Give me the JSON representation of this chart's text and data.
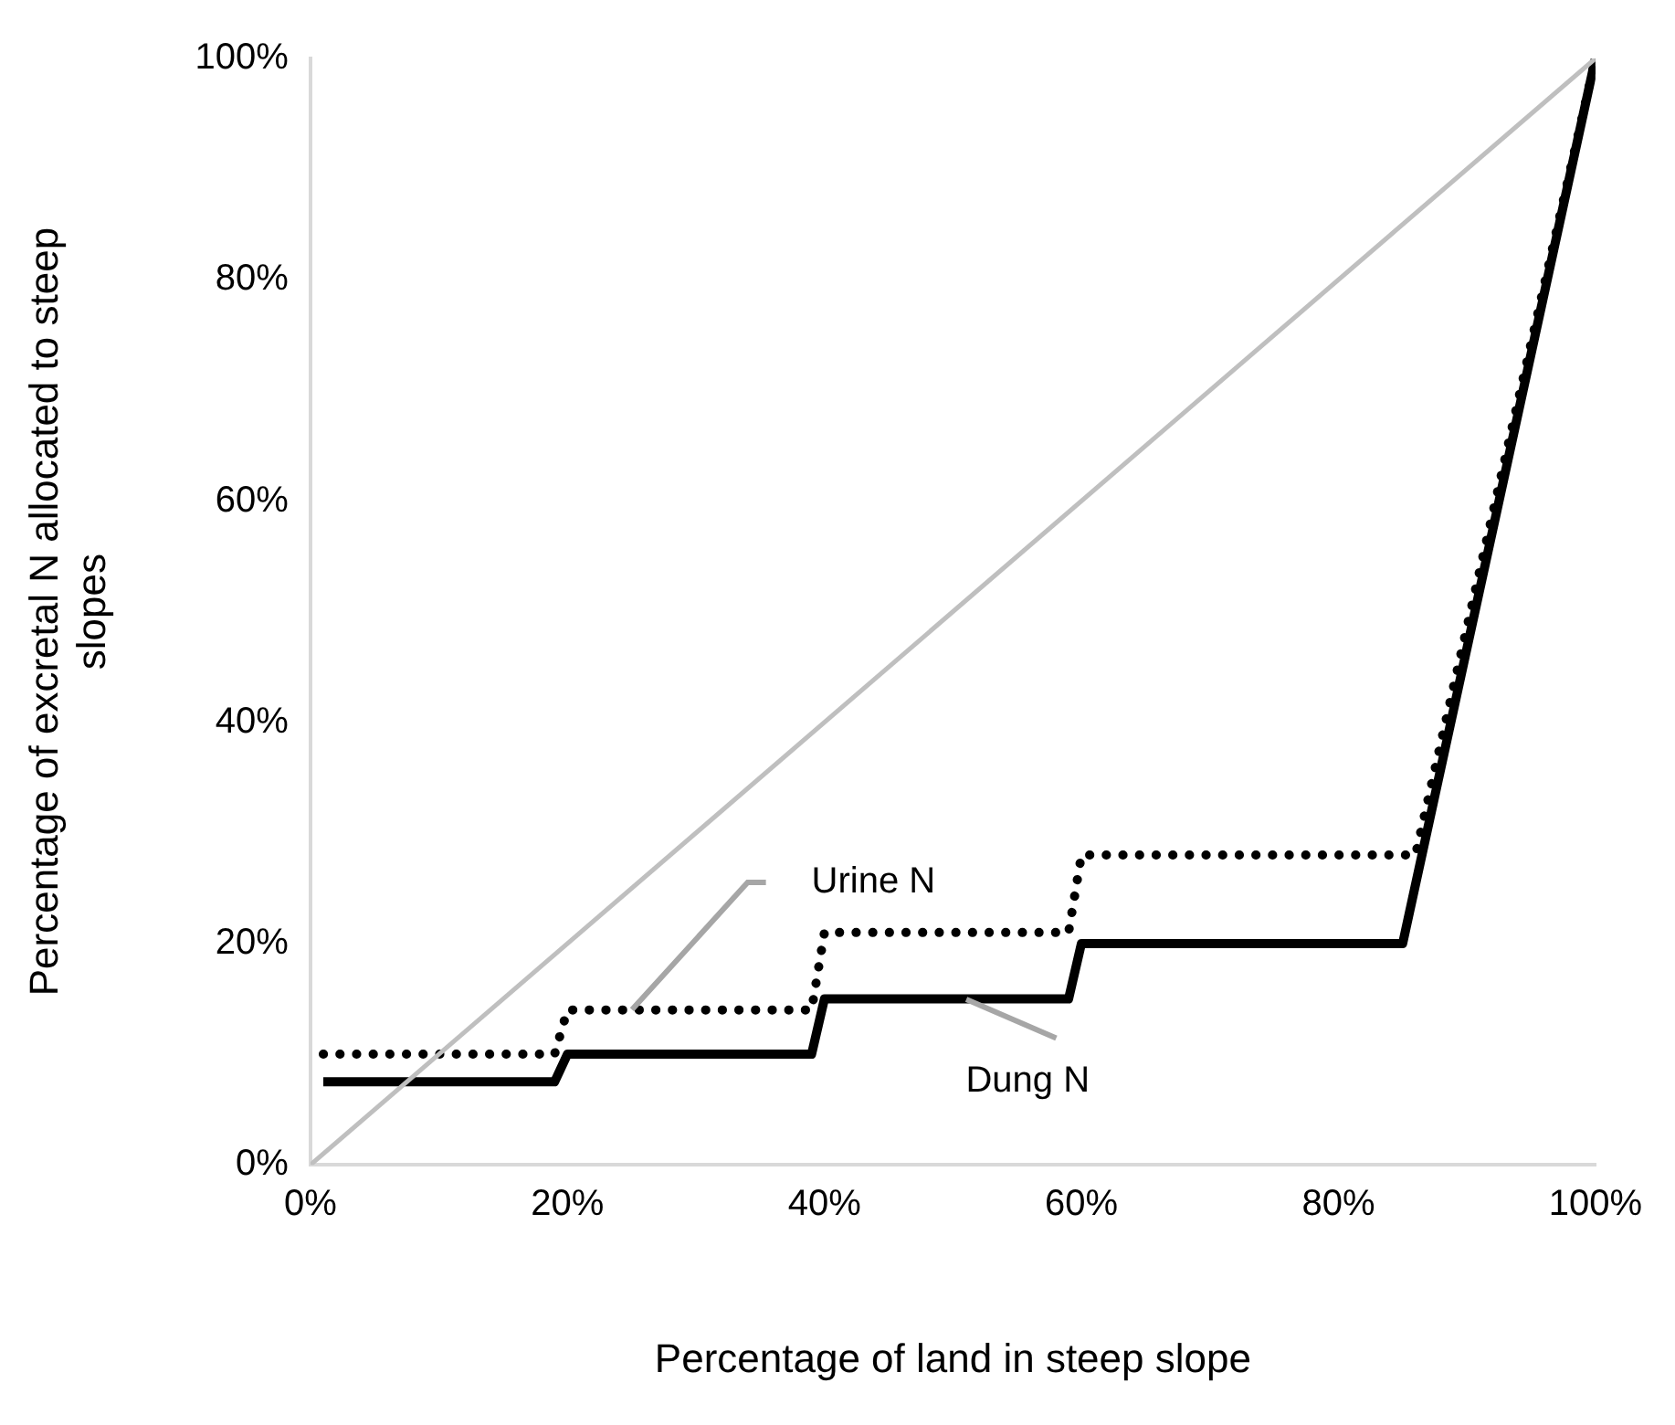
{
  "chart_data": {
    "type": "line",
    "xlabel": "Percentage of land in steep slope",
    "ylabel": "Percentage of excretal N allocated to steep slopes",
    "xlim": [
      0,
      100
    ],
    "ylim": [
      0,
      100
    ],
    "xticks": [
      {
        "value": 0,
        "label": "0%"
      },
      {
        "value": 20,
        "label": "20%"
      },
      {
        "value": 40,
        "label": "40%"
      },
      {
        "value": 60,
        "label": "60%"
      },
      {
        "value": 80,
        "label": "80%"
      },
      {
        "value": 100,
        "label": "100%"
      }
    ],
    "yticks": [
      {
        "value": 0,
        "label": "0%"
      },
      {
        "value": 20,
        "label": "20%"
      },
      {
        "value": 40,
        "label": "40%"
      },
      {
        "value": 60,
        "label": "60%"
      },
      {
        "value": 80,
        "label": "80%"
      },
      {
        "value": 100,
        "label": "100%"
      }
    ],
    "grid": false,
    "legend": false,
    "marker": "none",
    "series": [
      {
        "name": null,
        "color": "#bfbfbf",
        "line_style": "solid",
        "x": [
          0,
          100
        ],
        "values": [
          0,
          100
        ]
      },
      {
        "name": "Urine N",
        "color": "#000000",
        "line_style": "dotted",
        "x": [
          1,
          19,
          20,
          39,
          40,
          59,
          60,
          86,
          100
        ],
        "values": [
          10,
          10,
          14,
          14,
          21,
          21,
          28,
          28,
          100
        ]
      },
      {
        "name": "Dung N",
        "color": "#000000",
        "line_style": "solid",
        "x": [
          1,
          19,
          20,
          39,
          40,
          59,
          60,
          85,
          100
        ],
        "values": [
          7.5,
          7.5,
          10,
          10,
          15,
          15,
          20,
          20,
          100
        ]
      }
    ]
  }
}
